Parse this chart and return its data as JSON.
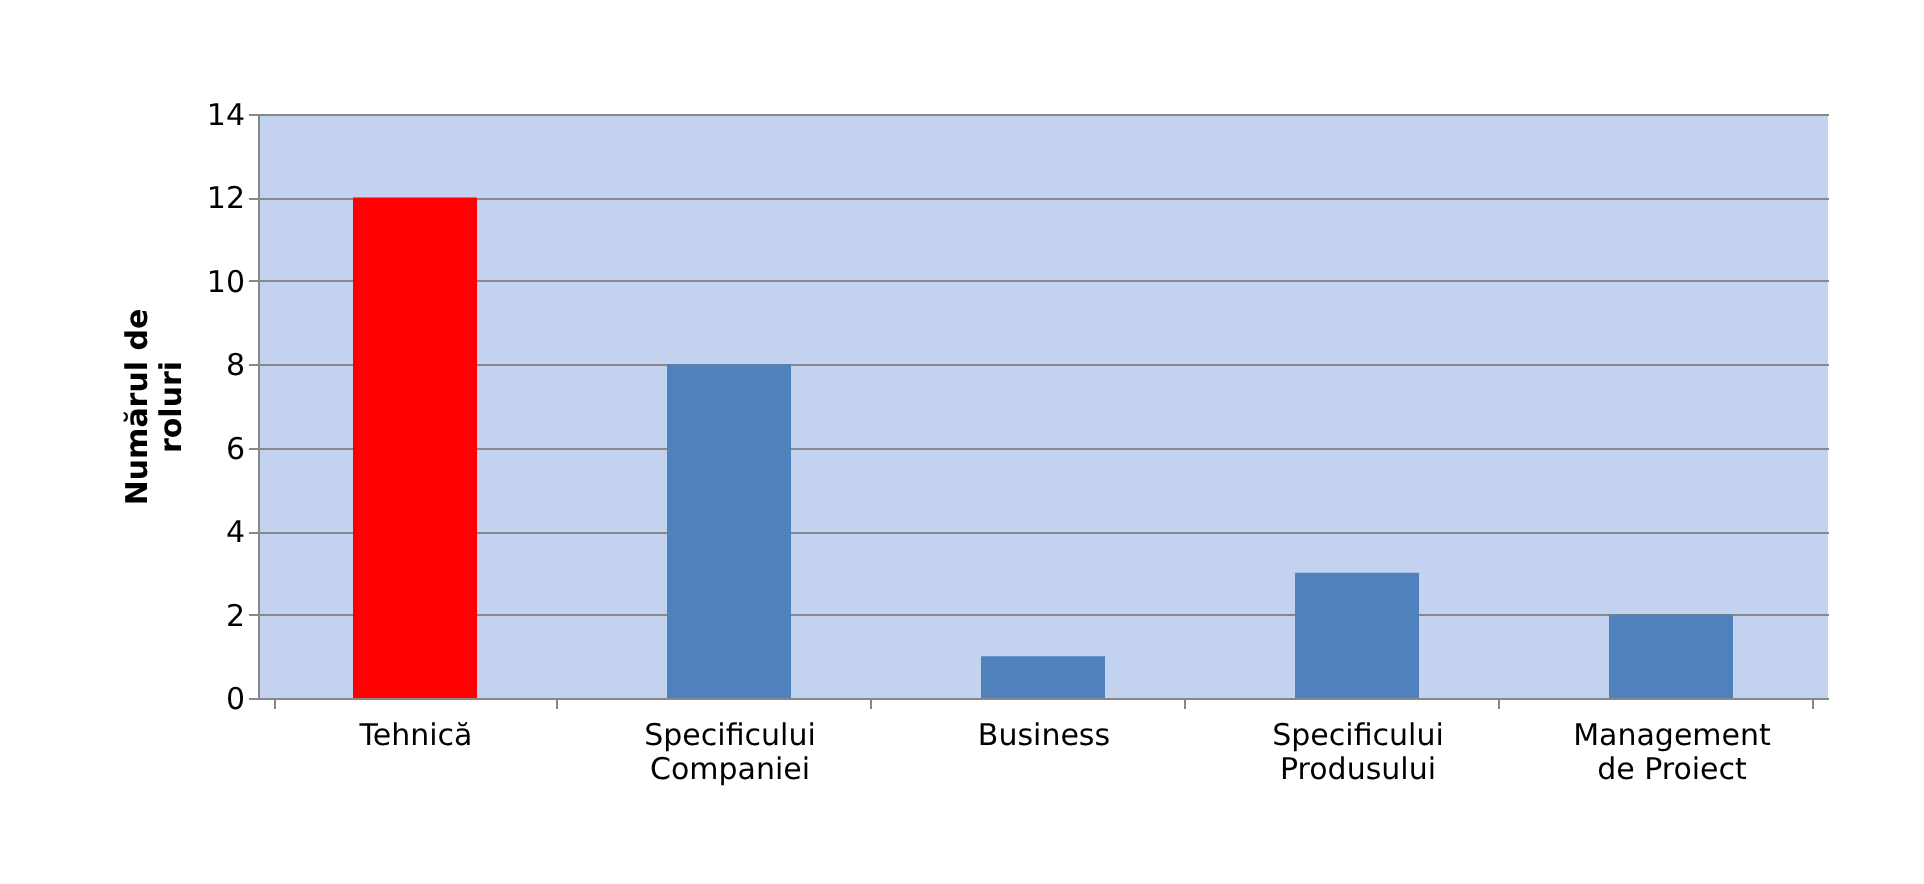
{
  "chart_data": {
    "type": "bar",
    "ylabel": "Numărul de roluri",
    "categories": [
      "Tehnică",
      "Specificului Companiei",
      "Business",
      "Specificului Produsului",
      "Management de Proiect"
    ],
    "values": [
      12,
      8,
      1,
      3,
      2
    ],
    "colors": [
      "#ff0000",
      "#4f81bd",
      "#4f81bd",
      "#4f81bd",
      "#4f81bd"
    ],
    "ylim": [
      0,
      14
    ],
    "yticks": [
      0,
      2,
      4,
      6,
      8,
      10,
      12,
      14
    ],
    "grid": "y"
  }
}
